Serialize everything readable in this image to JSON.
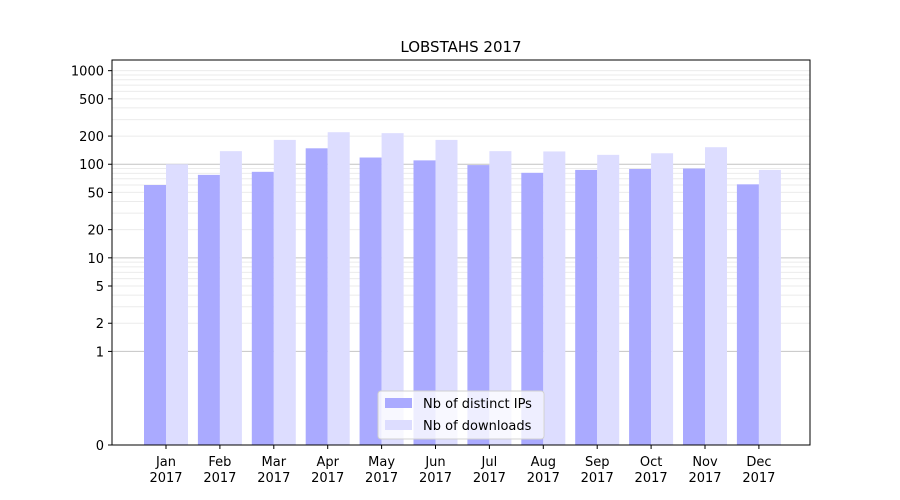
{
  "chart_data": {
    "type": "bar",
    "title": "LOBSTAHS 2017",
    "xlabel": "",
    "ylabel": "",
    "yscale": "symlog",
    "ylim": [
      0,
      1300
    ],
    "y_ticks": [
      0,
      1,
      2,
      5,
      10,
      20,
      50,
      100,
      200,
      500,
      1000
    ],
    "grid": true,
    "legend_position": "bottom-center",
    "categories": [
      "Jan\n2017",
      "Feb\n2017",
      "Mar\n2017",
      "Apr\n2017",
      "May\n2017",
      "Jun\n2017",
      "Jul\n2017",
      "Aug\n2017",
      "Sep\n2017",
      "Oct\n2017",
      "Nov\n2017",
      "Dec\n2017"
    ],
    "series": [
      {
        "name": "Nb of distinct IPs",
        "color": "#aaaaff",
        "values": [
          60,
          77,
          83,
          148,
          118,
          110,
          98,
          81,
          87,
          89,
          90,
          61
        ]
      },
      {
        "name": "Nb of downloads",
        "color": "#ddddff",
        "values": [
          100,
          138,
          182,
          220,
          215,
          182,
          138,
          137,
          126,
          131,
          152,
          87
        ]
      }
    ]
  }
}
